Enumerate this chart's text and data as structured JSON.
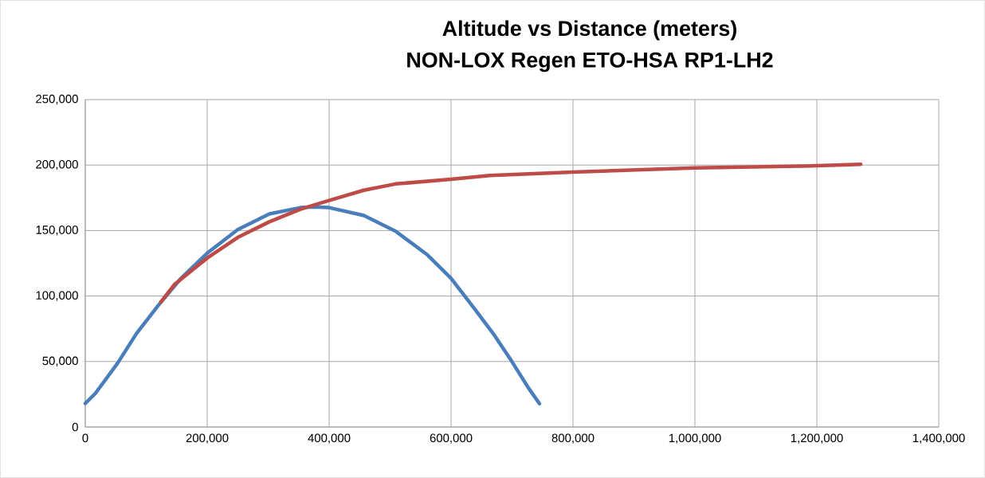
{
  "chart_data": {
    "type": "line",
    "title": "Altitude vs Distance (meters)",
    "subtitle": "NON-LOX Regen ETO-HSA RP1-LH2",
    "xlim": [
      0,
      1400000
    ],
    "ylim": [
      0,
      250000
    ],
    "xticks": [
      0,
      {
        "value": 200000,
        "label": "200,000"
      },
      {
        "value": 400000,
        "label": "400,000"
      },
      {
        "value": 600000,
        "label": "600,000"
      },
      {
        "value": 800000,
        "label": "800,000"
      },
      {
        "value": 1000000,
        "label": "1,000,000"
      },
      {
        "value": 1200000,
        "label": "1,200,000"
      },
      {
        "value": 1400000,
        "label": "1,400,000"
      }
    ],
    "yticks": [
      0,
      {
        "value": 50000,
        "label": "50,000"
      },
      {
        "value": 100000,
        "label": "100,000"
      },
      {
        "value": 150000,
        "label": "150,000"
      },
      {
        "value": 200000,
        "label": "200,000"
      },
      {
        "value": 250000,
        "label": "250,000"
      }
    ],
    "grid": true,
    "series": [
      {
        "color": "#4a7ebb",
        "x": [
          0,
          16600,
          52800,
          84000,
          120000,
          156000,
          200000,
          250000,
          302000,
          353000,
          375000,
          400000,
          457000,
          509000,
          561000,
          600000,
          638000,
          669000,
          700000,
          726000,
          745000
        ],
        "values": [
          18000,
          25700,
          48600,
          71400,
          93000,
          113000,
          132700,
          150700,
          162700,
          167500,
          168000,
          167500,
          161500,
          149500,
          131500,
          113500,
          90600,
          71400,
          49800,
          30500,
          17800
        ]
      },
      {
        "color": "#be4b48",
        "x": [
          124000,
          146000,
          200000,
          250000,
          302000,
          353000,
          400000,
          457000,
          509000,
          600000,
          664000,
          800000,
          1000000,
          1200000,
          1272000
        ],
        "values": [
          95400,
          108700,
          129000,
          144700,
          156700,
          166300,
          173000,
          180800,
          185600,
          189200,
          192000,
          194600,
          197800,
          199500,
          200600
        ]
      }
    ]
  }
}
